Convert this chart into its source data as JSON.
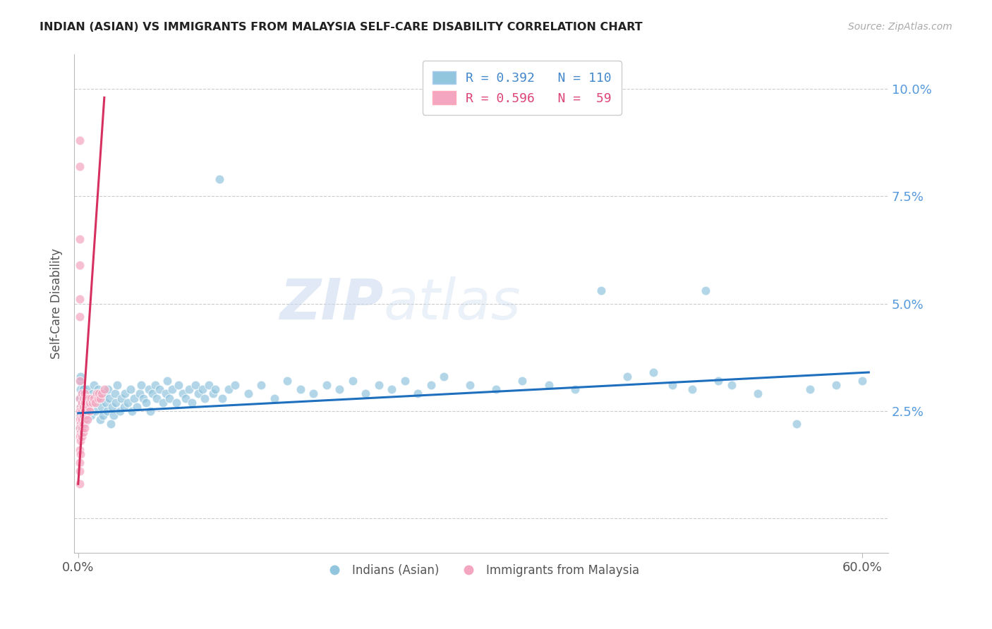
{
  "title": "INDIAN (ASIAN) VS IMMIGRANTS FROM MALAYSIA SELF-CARE DISABILITY CORRELATION CHART",
  "source": "Source: ZipAtlas.com",
  "ylabel": "Self-Care Disability",
  "yticks": [
    0.0,
    0.025,
    0.05,
    0.075,
    0.1
  ],
  "ytick_labels": [
    "",
    "2.5%",
    "5.0%",
    "7.5%",
    "10.0%"
  ],
  "xtick_left": "0.0%",
  "xtick_right": "60.0%",
  "xlim": [
    -0.003,
    0.62
  ],
  "ylim": [
    -0.008,
    0.108
  ],
  "watermark_text": "ZIPatlas",
  "legend_labels_bottom": [
    "Indians (Asian)",
    "Immigrants from Malaysia"
  ],
  "blue_color": "#92c5de",
  "pink_color": "#f4a6c0",
  "blue_line_color": "#1f6fbf",
  "pink_line_color": "#d63060",
  "background_color": "#ffffff",
  "grid_color": "#cccccc",
  "blue_scatter": [
    [
      0.001,
      0.028
    ],
    [
      0.002,
      0.026
    ],
    [
      0.002,
      0.03
    ],
    [
      0.001,
      0.024
    ],
    [
      0.003,
      0.027
    ],
    [
      0.004,
      0.025
    ],
    [
      0.003,
      0.022
    ],
    [
      0.005,
      0.028
    ],
    [
      0.002,
      0.032
    ],
    [
      0.004,
      0.03
    ],
    [
      0.002,
      0.033
    ],
    [
      0.001,
      0.021
    ],
    [
      0.005,
      0.022
    ],
    [
      0.003,
      0.02
    ],
    [
      0.004,
      0.026
    ],
    [
      0.006,
      0.025
    ],
    [
      0.007,
      0.03
    ],
    [
      0.008,
      0.027
    ],
    [
      0.006,
      0.023
    ],
    [
      0.009,
      0.028
    ],
    [
      0.01,
      0.024
    ],
    [
      0.007,
      0.026
    ],
    [
      0.011,
      0.029
    ],
    [
      0.012,
      0.031
    ],
    [
      0.013,
      0.025
    ],
    [
      0.014,
      0.027
    ],
    [
      0.015,
      0.03
    ],
    [
      0.016,
      0.028
    ],
    [
      0.017,
      0.023
    ],
    [
      0.018,
      0.026
    ],
    [
      0.019,
      0.024
    ],
    [
      0.02,
      0.029
    ],
    [
      0.021,
      0.027
    ],
    [
      0.022,
      0.025
    ],
    [
      0.023,
      0.03
    ],
    [
      0.024,
      0.028
    ],
    [
      0.025,
      0.022
    ],
    [
      0.026,
      0.026
    ],
    [
      0.027,
      0.024
    ],
    [
      0.028,
      0.029
    ],
    [
      0.029,
      0.027
    ],
    [
      0.03,
      0.031
    ],
    [
      0.032,
      0.025
    ],
    [
      0.033,
      0.028
    ],
    [
      0.035,
      0.026
    ],
    [
      0.036,
      0.029
    ],
    [
      0.038,
      0.027
    ],
    [
      0.04,
      0.03
    ],
    [
      0.041,
      0.025
    ],
    [
      0.043,
      0.028
    ],
    [
      0.045,
      0.026
    ],
    [
      0.047,
      0.029
    ],
    [
      0.048,
      0.031
    ],
    [
      0.05,
      0.028
    ],
    [
      0.052,
      0.027
    ],
    [
      0.054,
      0.03
    ],
    [
      0.055,
      0.025
    ],
    [
      0.057,
      0.029
    ],
    [
      0.059,
      0.031
    ],
    [
      0.06,
      0.028
    ],
    [
      0.062,
      0.03
    ],
    [
      0.065,
      0.027
    ],
    [
      0.067,
      0.029
    ],
    [
      0.068,
      0.032
    ],
    [
      0.07,
      0.028
    ],
    [
      0.072,
      0.03
    ],
    [
      0.075,
      0.027
    ],
    [
      0.077,
      0.031
    ],
    [
      0.08,
      0.029
    ],
    [
      0.082,
      0.028
    ],
    [
      0.085,
      0.03
    ],
    [
      0.087,
      0.027
    ],
    [
      0.09,
      0.031
    ],
    [
      0.092,
      0.029
    ],
    [
      0.095,
      0.03
    ],
    [
      0.097,
      0.028
    ],
    [
      0.1,
      0.031
    ],
    [
      0.103,
      0.029
    ],
    [
      0.105,
      0.03
    ],
    [
      0.108,
      0.079
    ],
    [
      0.11,
      0.028
    ],
    [
      0.115,
      0.03
    ],
    [
      0.12,
      0.031
    ],
    [
      0.13,
      0.029
    ],
    [
      0.14,
      0.031
    ],
    [
      0.15,
      0.028
    ],
    [
      0.16,
      0.032
    ],
    [
      0.17,
      0.03
    ],
    [
      0.18,
      0.029
    ],
    [
      0.19,
      0.031
    ],
    [
      0.2,
      0.03
    ],
    [
      0.21,
      0.032
    ],
    [
      0.22,
      0.029
    ],
    [
      0.23,
      0.031
    ],
    [
      0.24,
      0.03
    ],
    [
      0.25,
      0.032
    ],
    [
      0.26,
      0.029
    ],
    [
      0.27,
      0.031
    ],
    [
      0.28,
      0.033
    ],
    [
      0.3,
      0.031
    ],
    [
      0.32,
      0.03
    ],
    [
      0.34,
      0.032
    ],
    [
      0.36,
      0.031
    ],
    [
      0.38,
      0.03
    ],
    [
      0.4,
      0.053
    ],
    [
      0.42,
      0.033
    ],
    [
      0.44,
      0.034
    ],
    [
      0.455,
      0.031
    ],
    [
      0.47,
      0.03
    ],
    [
      0.48,
      0.053
    ],
    [
      0.49,
      0.032
    ],
    [
      0.5,
      0.031
    ],
    [
      0.52,
      0.029
    ],
    [
      0.55,
      0.022
    ],
    [
      0.56,
      0.03
    ],
    [
      0.58,
      0.031
    ],
    [
      0.6,
      0.032
    ]
  ],
  "pink_scatter": [
    [
      0.001,
      0.088
    ],
    [
      0.001,
      0.082
    ],
    [
      0.001,
      0.065
    ],
    [
      0.001,
      0.059
    ],
    [
      0.001,
      0.051
    ],
    [
      0.001,
      0.047
    ],
    [
      0.001,
      0.032
    ],
    [
      0.001,
      0.028
    ],
    [
      0.002,
      0.026
    ],
    [
      0.001,
      0.025
    ],
    [
      0.002,
      0.024
    ],
    [
      0.001,
      0.023
    ],
    [
      0.002,
      0.022
    ],
    [
      0.001,
      0.021
    ],
    [
      0.002,
      0.02
    ],
    [
      0.001,
      0.019
    ],
    [
      0.002,
      0.018
    ],
    [
      0.001,
      0.016
    ],
    [
      0.002,
      0.015
    ],
    [
      0.001,
      0.013
    ],
    [
      0.001,
      0.011
    ],
    [
      0.001,
      0.008
    ],
    [
      0.003,
      0.029
    ],
    [
      0.003,
      0.027
    ],
    [
      0.003,
      0.025
    ],
    [
      0.003,
      0.023
    ],
    [
      0.003,
      0.021
    ],
    [
      0.003,
      0.019
    ],
    [
      0.004,
      0.028
    ],
    [
      0.004,
      0.026
    ],
    [
      0.004,
      0.024
    ],
    [
      0.004,
      0.022
    ],
    [
      0.004,
      0.02
    ],
    [
      0.005,
      0.029
    ],
    [
      0.005,
      0.027
    ],
    [
      0.005,
      0.025
    ],
    [
      0.005,
      0.023
    ],
    [
      0.005,
      0.021
    ],
    [
      0.006,
      0.028
    ],
    [
      0.006,
      0.026
    ],
    [
      0.006,
      0.024
    ],
    [
      0.007,
      0.027
    ],
    [
      0.007,
      0.025
    ],
    [
      0.007,
      0.023
    ],
    [
      0.008,
      0.028
    ],
    [
      0.008,
      0.026
    ],
    [
      0.009,
      0.027
    ],
    [
      0.009,
      0.025
    ],
    [
      0.01,
      0.028
    ],
    [
      0.011,
      0.027
    ],
    [
      0.012,
      0.028
    ],
    [
      0.013,
      0.027
    ],
    [
      0.014,
      0.029
    ],
    [
      0.015,
      0.028
    ],
    [
      0.016,
      0.029
    ],
    [
      0.017,
      0.028
    ],
    [
      0.018,
      0.029
    ],
    [
      0.02,
      0.03
    ]
  ],
  "blue_trend_x": [
    0.0,
    0.605
  ],
  "blue_trend_y": [
    0.0245,
    0.034
  ],
  "pink_trend_x": [
    0.0,
    0.02
  ],
  "pink_trend_y": [
    0.008,
    0.098
  ]
}
